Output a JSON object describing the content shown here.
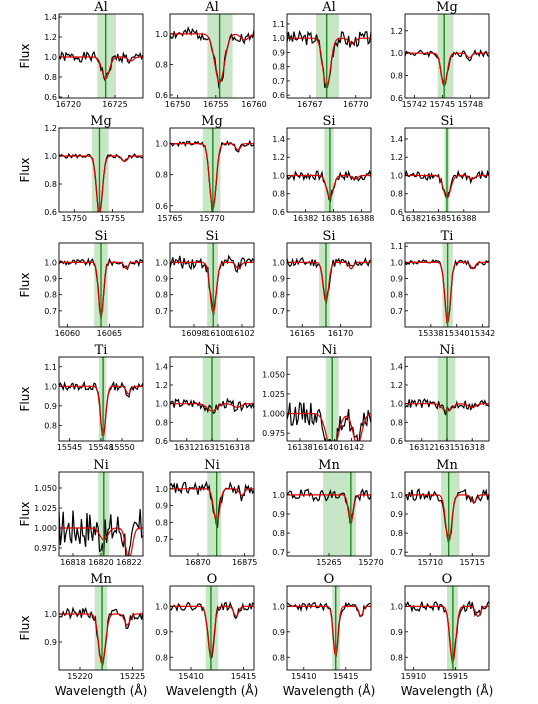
{
  "figure": {
    "ylabel": "Flux",
    "xlabel": "Wavelength (Å)",
    "colors": {
      "observed": "#000000",
      "model": "#e00000",
      "line": "#1a8a1a",
      "band": "#a8d8a8"
    }
  },
  "chart_data": [
    {
      "type": "line",
      "title": "Al",
      "xlim": [
        16719,
        16728
      ],
      "ylim": [
        0.59,
        1.43
      ],
      "xticks": [
        16720,
        16725
      ],
      "yticks": [
        0.6,
        0.8,
        1.0,
        1.2,
        1.4
      ],
      "ytick_labels": [
        "0.6",
        "0.8",
        "1.0",
        "1.2",
        "1.4"
      ],
      "line": 16724,
      "band": [
        16723.1,
        16725.1
      ],
      "model_depth": 0.22,
      "model_width": 0.55,
      "obs_noise": 0.05,
      "seed": 1
    },
    {
      "type": "line",
      "title": "Al",
      "xlim": [
        16749,
        16760
      ],
      "ylim": [
        0.58,
        1.13
      ],
      "xticks": [
        16750,
        16755,
        16760
      ],
      "yticks": [
        0.6,
        0.8,
        1.0
      ],
      "ytick_labels": [
        "0.6",
        "0.8",
        "1.0"
      ],
      "line": 16755.5,
      "band": [
        16753.9,
        16757.2
      ],
      "model_depth": 0.32,
      "model_width": 0.9,
      "obs_noise": 0.04,
      "seed": 2
    },
    {
      "type": "line",
      "title": "Al",
      "xlim": [
        16765.5,
        16771
      ],
      "ylim": [
        0.58,
        1.17
      ],
      "xticks": [
        16767,
        16770
      ],
      "yticks": [
        0.6,
        0.7,
        0.8,
        0.9,
        1.0,
        1.1
      ],
      "ytick_labels": [
        "0.6",
        "0.7",
        "0.8",
        "0.9",
        "1.0",
        "1.1"
      ],
      "line": 16768.1,
      "band": [
        16767.4,
        16768.9
      ],
      "model_depth": 0.35,
      "model_width": 0.35,
      "obs_noise": 0.05,
      "seed": 3
    },
    {
      "type": "line",
      "title": "Mg",
      "xlim": [
        15741,
        15750
      ],
      "ylim": [
        0.6,
        1.35
      ],
      "xticks": [
        15742,
        15745,
        15748
      ],
      "yticks": [
        0.6,
        0.8,
        1.0,
        1.2
      ],
      "ytick_labels": [
        "0.6",
        "0.8",
        "1.0",
        "1.2"
      ],
      "line": 15745.2,
      "band": [
        15744.5,
        15746.2
      ],
      "model_depth": 0.3,
      "model_width": 0.45,
      "obs_noise": 0.03,
      "seed": 4
    },
    {
      "type": "line",
      "title": "Mg",
      "xlim": [
        15748,
        15759
      ],
      "ylim": [
        0.6,
        1.2
      ],
      "xticks": [
        15750,
        15755
      ],
      "yticks": [
        0.6,
        0.8,
        1.0,
        1.2
      ],
      "ytick_labels": [
        "0.6",
        "0.8",
        "1.0",
        "1.2"
      ],
      "line": 15753.3,
      "band": [
        15752.3,
        15754.5
      ],
      "model_depth": 0.42,
      "model_width": 0.55,
      "obs_noise": 0.015,
      "seed": 5
    },
    {
      "type": "line",
      "title": "Mg",
      "xlim": [
        15765,
        15775
      ],
      "ylim": [
        0.56,
        1.1
      ],
      "xticks": [
        15765,
        15770
      ],
      "yticks": [
        0.6,
        0.8,
        1.0
      ],
      "ytick_labels": [
        "0.6",
        "0.8",
        "1.0"
      ],
      "line": 15770.1,
      "band": [
        15768.9,
        15771.0
      ],
      "model_depth": 0.42,
      "model_width": 0.55,
      "obs_noise": 0.015,
      "seed": 6
    },
    {
      "type": "line",
      "title": "Si",
      "xlim": [
        16380,
        16389
      ],
      "ylim": [
        0.6,
        1.52
      ],
      "xticks": [
        16382,
        16385,
        16388
      ],
      "yticks": [
        0.6,
        0.8,
        1.0,
        1.2,
        1.4
      ],
      "ytick_labels": [
        "0.6",
        "0.8",
        "1.0",
        "1.2",
        "1.4"
      ],
      "line": 16384.6,
      "band": [
        16384.0,
        16385.0
      ],
      "model_depth": 0.25,
      "model_width": 0.5,
      "obs_noise": 0.05,
      "seed": 7
    },
    {
      "type": "line",
      "title": "Si",
      "xlim": [
        16381,
        16391
      ],
      "ylim": [
        0.6,
        1.52
      ],
      "xticks": [
        16382,
        16385,
        16388
      ],
      "yticks": [
        0.6,
        0.8,
        1.0,
        1.2,
        1.4
      ],
      "ytick_labels": [
        "0.6",
        "0.8",
        "1.0",
        "1.2",
        "1.4"
      ],
      "line": 16386.0,
      "band": [
        16385.7,
        16386.3
      ],
      "model_depth": 0.25,
      "model_width": 0.6,
      "obs_noise": 0.05,
      "seed": 8
    },
    {
      "type": "line",
      "title": "Si",
      "xlim": [
        16059,
        16069
      ],
      "ylim": [
        0.6,
        1.12
      ],
      "xticks": [
        16060,
        16065
      ],
      "yticks": [
        0.7,
        0.8,
        0.9,
        1.0
      ],
      "ytick_labels": [
        "0.7",
        "0.8",
        "0.9",
        "1.0"
      ],
      "line": 16064.0,
      "band": [
        16063.2,
        16064.8
      ],
      "model_depth": 0.35,
      "model_width": 0.4,
      "obs_noise": 0.02,
      "seed": 9
    },
    {
      "type": "line",
      "title": "Si",
      "xlim": [
        16096,
        16103
      ],
      "ylim": [
        0.6,
        1.12
      ],
      "xticks": [
        16098,
        16100,
        16102
      ],
      "yticks": [
        0.7,
        0.8,
        0.9,
        1.0
      ],
      "ytick_labels": [
        "0.7",
        "0.8",
        "0.9",
        "1.0"
      ],
      "line": 16099.6,
      "band": [
        16099.1,
        16100.0
      ],
      "model_depth": 0.32,
      "model_width": 0.35,
      "obs_noise": 0.04,
      "seed": 10
    },
    {
      "type": "line",
      "title": "Si",
      "xlim": [
        16163,
        16174
      ],
      "ylim": [
        0.6,
        1.12
      ],
      "xticks": [
        16165,
        16170
      ],
      "yticks": [
        0.7,
        0.8,
        0.9,
        1.0
      ],
      "ytick_labels": [
        "0.7",
        "0.8",
        "0.9",
        "1.0"
      ],
      "line": 16168.1,
      "band": [
        16167.2,
        16168.6
      ],
      "model_depth": 0.25,
      "model_width": 0.5,
      "obs_noise": 0.03,
      "seed": 11
    },
    {
      "type": "line",
      "title": "Ti",
      "xlim": [
        15336,
        15342.5
      ],
      "ylim": [
        0.6,
        1.12
      ],
      "xticks": [
        15338,
        15340,
        15342
      ],
      "yticks": [
        0.7,
        0.8,
        0.9,
        1.0,
        1.1
      ],
      "ytick_labels": [
        "0.7",
        "0.8",
        "0.9",
        "1.0",
        "1.1"
      ],
      "line": 15339.3,
      "band": [
        15338.9,
        15339.7
      ],
      "model_depth": 0.38,
      "model_width": 0.3,
      "obs_noise": 0.015,
      "seed": 12
    },
    {
      "type": "line",
      "title": "Ti",
      "xlim": [
        15544,
        15552
      ],
      "ylim": [
        0.72,
        1.15
      ],
      "xticks": [
        15545,
        15548,
        15550
      ],
      "yticks": [
        0.8,
        0.9,
        1.0,
        1.1
      ],
      "ytick_labels": [
        "0.8",
        "0.9",
        "1.0",
        "1.1"
      ],
      "line": 15548.2,
      "band": [
        15547.8,
        15548.5
      ],
      "model_depth": 0.26,
      "model_width": 0.35,
      "obs_noise": 0.02,
      "seed": 13
    },
    {
      "type": "line",
      "title": "Ni",
      "xlim": [
        16310,
        16320
      ],
      "ylim": [
        0.6,
        1.5
      ],
      "xticks": [
        16312,
        16315,
        16318
      ],
      "yticks": [
        0.6,
        0.8,
        1.0,
        1.2,
        1.4
      ],
      "ytick_labels": [
        "0.6",
        "0.8",
        "1.0",
        "1.2",
        "1.4"
      ],
      "line": 16315.0,
      "band": [
        16313.9,
        16316.0
      ],
      "model_depth": 0.08,
      "model_width": 0.8,
      "obs_noise": 0.05,
      "seed": 14
    },
    {
      "type": "line",
      "title": "Ni",
      "xlim": [
        16137,
        16143.5
      ],
      "ylim": [
        0.965,
        1.072
      ],
      "xticks": [
        16138,
        16140,
        16142
      ],
      "yticks": [
        0.975,
        1.0,
        1.025,
        1.05
      ],
      "ytick_labels": [
        "0.975",
        "1.000",
        "1.025",
        "1.050"
      ],
      "line": 16140.5,
      "band": [
        16140.0,
        16141.0
      ],
      "model_depth": 0.05,
      "model_width": 0.6,
      "obs_noise": 0.015,
      "seed": 15
    },
    {
      "type": "line",
      "title": "Ni",
      "xlim": [
        16310,
        16320
      ],
      "ylim": [
        0.6,
        1.5
      ],
      "xticks": [
        16312,
        16315,
        16318
      ],
      "yticks": [
        0.6,
        0.8,
        1.0,
        1.2,
        1.4
      ],
      "ytick_labels": [
        "0.6",
        "0.8",
        "1.0",
        "1.2",
        "1.4"
      ],
      "line": 16315.0,
      "band": [
        16313.9,
        16316.0
      ],
      "model_depth": 0.08,
      "model_width": 0.8,
      "obs_noise": 0.05,
      "seed": 16
    },
    {
      "type": "line",
      "title": "Ni",
      "xlim": [
        16817,
        16823
      ],
      "ylim": [
        0.965,
        1.07
      ],
      "xticks": [
        16818,
        16820,
        16822
      ],
      "yticks": [
        0.975,
        1.0,
        1.025,
        1.05
      ],
      "ytick_labels": [
        "0.975",
        "1.000",
        "1.025",
        "1.050"
      ],
      "line": 16820.2,
      "band": [
        16819.8,
        16820.6
      ],
      "model_depth": 0.015,
      "model_width": 0.4,
      "obs_noise": 0.025,
      "seed": 17
    },
    {
      "type": "line",
      "title": "Ni",
      "xlim": [
        16867,
        16876
      ],
      "ylim": [
        0.6,
        1.1
      ],
      "xticks": [
        16870,
        16875
      ],
      "yticks": [
        0.7,
        0.8,
        0.9,
        1.0
      ],
      "ytick_labels": [
        "0.7",
        "0.8",
        "0.9",
        "1.0"
      ],
      "line": 16872.0,
      "band": [
        16871.0,
        16872.5
      ],
      "model_depth": 0.2,
      "model_width": 0.45,
      "obs_noise": 0.04,
      "seed": 18
    },
    {
      "type": "line",
      "title": "Mn",
      "xlim": [
        15260,
        15270
      ],
      "ylim": [
        0.68,
        1.12
      ],
      "xticks": [
        15265,
        15270
      ],
      "yticks": [
        0.7,
        0.8,
        0.9,
        1.0
      ],
      "ytick_labels": [
        "0.7",
        "0.8",
        "0.9",
        "1.0"
      ],
      "line": 15267.6,
      "band": [
        15264.3,
        15268.2
      ],
      "model_depth": 0.15,
      "model_width": 0.4,
      "obs_noise": 0.03,
      "seed": 19
    },
    {
      "type": "line",
      "title": "Mn",
      "xlim": [
        15707,
        15717
      ],
      "ylim": [
        0.68,
        1.12
      ],
      "xticks": [
        15710,
        15715
      ],
      "yticks": [
        0.7,
        0.8,
        0.9,
        1.0
      ],
      "ytick_labels": [
        "0.7",
        "0.8",
        "0.9",
        "1.0"
      ],
      "line": 15712.2,
      "band": [
        15711.3,
        15713.5
      ],
      "model_depth": 0.25,
      "model_width": 0.5,
      "obs_noise": 0.03,
      "seed": 20
    },
    {
      "type": "line",
      "title": "Mn",
      "xlim": [
        15218,
        15226
      ],
      "ylim": [
        0.8,
        1.1
      ],
      "xticks": [
        15220,
        15225
      ],
      "yticks": [
        0.9,
        1.0
      ],
      "ytick_labels": [
        "0.9",
        "1.0"
      ],
      "line": 15222.1,
      "band": [
        15221.4,
        15222.6
      ],
      "model_depth": 0.18,
      "model_width": 0.45,
      "obs_noise": 0.02,
      "seed": 21
    },
    {
      "type": "line",
      "title": "O",
      "xlim": [
        15408,
        15416
      ],
      "ylim": [
        0.75,
        1.08
      ],
      "xticks": [
        15410,
        15415
      ],
      "yticks": [
        0.8,
        0.9,
        1.0
      ],
      "ytick_labels": [
        "0.8",
        "0.9",
        "1.0"
      ],
      "line": 15411.9,
      "band": [
        15411.4,
        15412.6
      ],
      "model_depth": 0.2,
      "model_width": 0.4,
      "obs_noise": 0.015,
      "seed": 22
    },
    {
      "type": "line",
      "title": "O",
      "xlim": [
        15408,
        15418
      ],
      "ylim": [
        0.75,
        1.08
      ],
      "xticks": [
        15410,
        15415
      ],
      "yticks": [
        0.8,
        0.9,
        1.0
      ],
      "ytick_labels": [
        "0.8",
        "0.9",
        "1.0"
      ],
      "line": 15413.8,
      "band": [
        15413.4,
        15414.3
      ],
      "model_depth": 0.2,
      "model_width": 0.4,
      "obs_noise": 0.015,
      "seed": 23
    },
    {
      "type": "line",
      "title": "O",
      "xlim": [
        15909,
        15919
      ],
      "ylim": [
        0.75,
        1.08
      ],
      "xticks": [
        15910,
        15915
      ],
      "yticks": [
        0.8,
        0.9,
        1.0
      ],
      "ytick_labels": [
        "0.8",
        "0.9",
        "1.0"
      ],
      "line": 15914.7,
      "band": [
        15914.0,
        15915.3
      ],
      "model_depth": 0.22,
      "model_width": 0.5,
      "obs_noise": 0.02,
      "seed": 24
    }
  ]
}
